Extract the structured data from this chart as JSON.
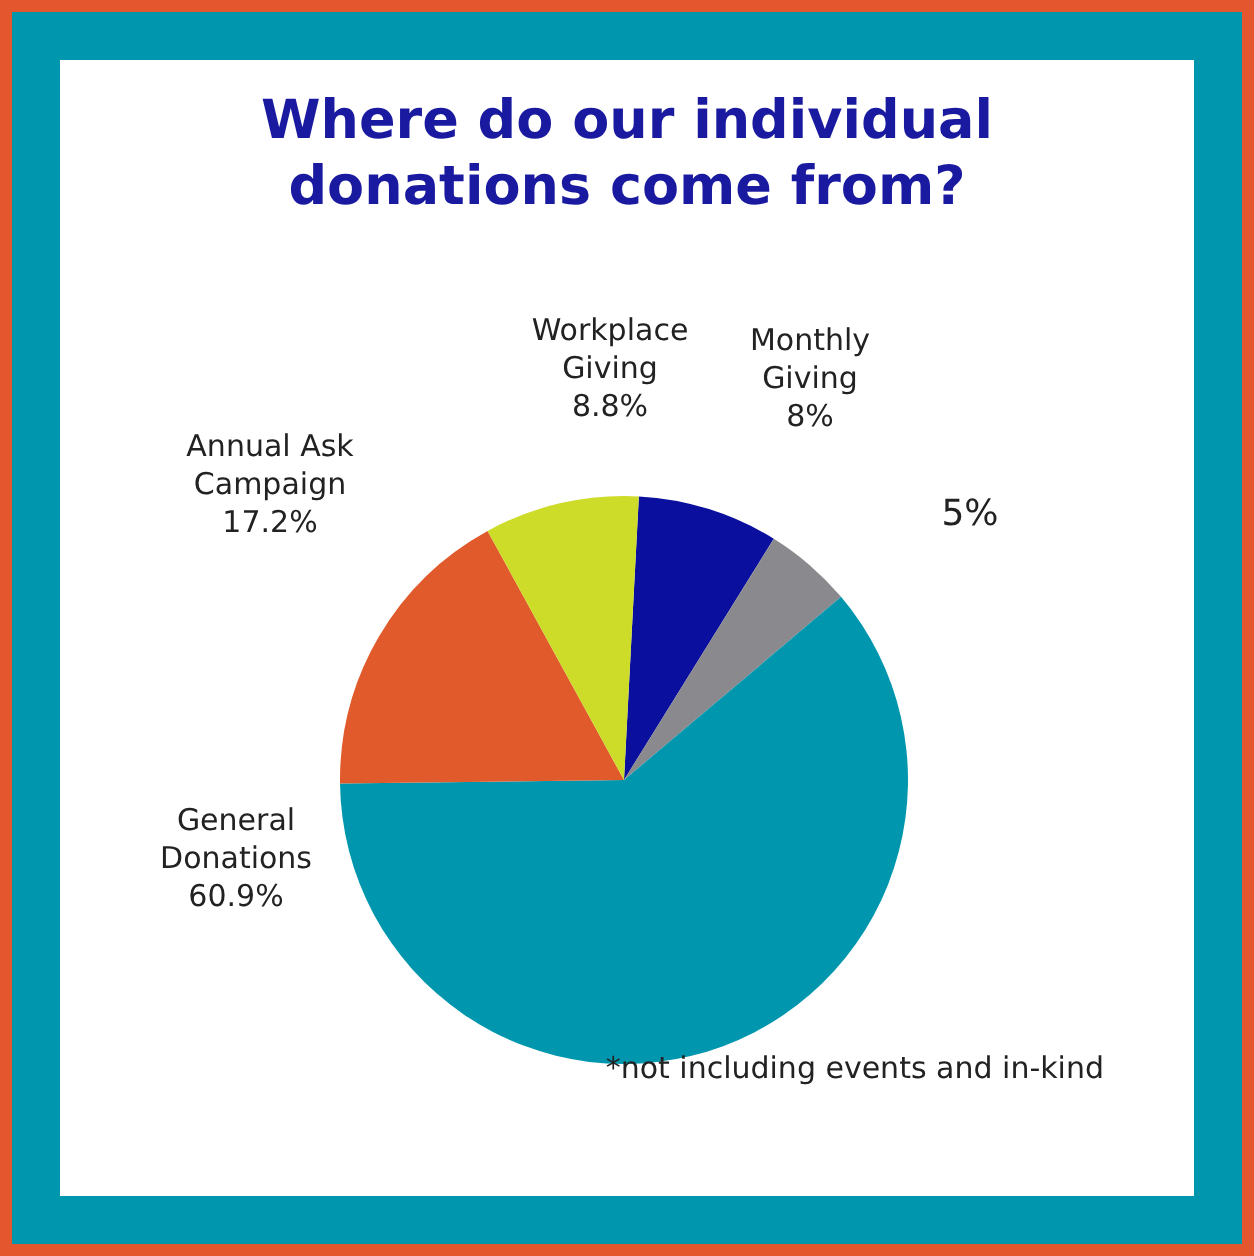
{
  "chart_data": {
    "type": "pie",
    "title": "Where do our individual donations come from?",
    "categories": [
      "Monthly Giving",
      null,
      "General Donations",
      "Annual Ask Campaign",
      "Workplace Giving"
    ],
    "values": [
      8,
      5,
      60.9,
      17.2,
      8.8
    ],
    "colors": [
      "#0a0f9e",
      "#8a8a8e",
      "#0097ae",
      "#e05a2b",
      "#cddc29"
    ],
    "value_labels": [
      "8%",
      "5%",
      "60.9%",
      "17.2%",
      "8.8%"
    ],
    "legend": false,
    "annotations": [
      "*not including events and in-kind"
    ]
  }
}
